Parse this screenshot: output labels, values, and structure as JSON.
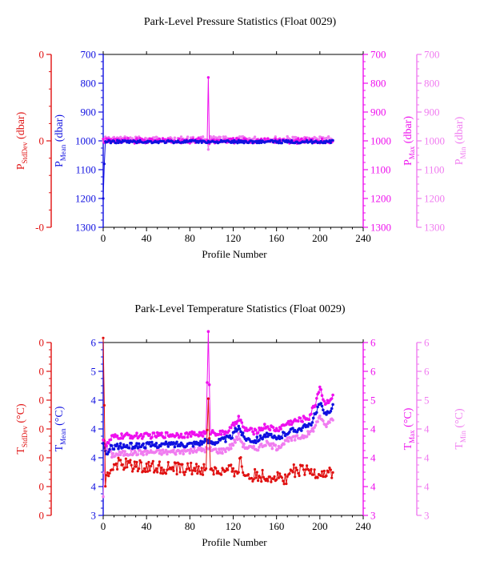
{
  "footer_note": "",
  "colors": {
    "stddev": "#e01010",
    "mean": "#1010e0",
    "max": "#ee10ee",
    "min": "#f07cf0"
  },
  "chart_data": [
    {
      "type": "line",
      "title": "Park-Level Pressure Statistics (Float 0029)",
      "xlabel": "Profile Number",
      "xlim": [
        0,
        240
      ],
      "x_ticks": [
        "0",
        "40",
        "80",
        "120",
        "160",
        "200",
        "240"
      ],
      "y_axes": {
        "stddev": {
          "label_main": "P",
          "label_sub": "StdDev",
          "label_unit": " (dbar)",
          "ticks": [
            "0",
            "0",
            "-0"
          ]
        },
        "mean": {
          "label_main": "P",
          "label_sub": "Mean",
          "label_unit": " (dbar)",
          "ticks": [
            "700",
            "800",
            "900",
            "1000",
            "1100",
            "1200",
            "1300"
          ],
          "ylim": [
            1300,
            700
          ]
        },
        "max": {
          "label_main": "P",
          "label_sub": "Max",
          "label_unit": " (dbar)",
          "ticks": [
            "700",
            "800",
            "900",
            "1000",
            "1100",
            "1200",
            "1300"
          ]
        },
        "min": {
          "label_main": "P",
          "label_sub": "Min",
          "label_unit": " (dbar)",
          "ticks": [
            "700",
            "800",
            "900",
            "1000",
            "1100",
            "1200",
            "1300"
          ]
        }
      },
      "series": [
        {
          "key": "mean",
          "base": 1003,
          "noise": 5,
          "spikes": [
            [
              0,
              1200
            ],
            [
              1,
              1080
            ]
          ]
        },
        {
          "key": "max",
          "base": 1000,
          "noise": 9,
          "spikes": [
            [
              97,
              780
            ],
            [
              98,
              1010
            ]
          ]
        },
        {
          "key": "min",
          "base": 995,
          "noise": 10,
          "spikes": [
            [
              97,
              1030
            ],
            [
              98,
              1000
            ]
          ]
        }
      ]
    },
    {
      "type": "line",
      "title": "Park-Level Temperature Statistics (Float 0029)",
      "xlabel": "Profile Number",
      "xlim": [
        0,
        240
      ],
      "x_ticks": [
        "0",
        "40",
        "80",
        "120",
        "160",
        "200",
        "240"
      ],
      "y_axes": {
        "stddev": {
          "label_main": "T",
          "label_sub": "StdDev",
          "label_unit": " (°C)",
          "ticks": [
            "0",
            "0",
            "0",
            "0",
            "0",
            "0",
            "0"
          ]
        },
        "mean": {
          "label_main": "T",
          "label_sub": "Mean",
          "label_unit": " (°C)",
          "ticks": [
            "6",
            "5",
            "4",
            "4",
            "4",
            "4",
            "3"
          ],
          "ylim": [
            3,
            6
          ]
        },
        "max": {
          "label_main": "T",
          "label_sub": "Max",
          "label_unit": " (°C)",
          "ticks": [
            "6",
            "6",
            "5",
            "4",
            "4",
            "4",
            "3"
          ]
        },
        "min": {
          "label_main": "T",
          "label_sub": "Min",
          "label_unit": " (°C)",
          "ticks": [
            "6",
            "6",
            "5",
            "4",
            "4",
            "4",
            "3"
          ]
        }
      },
      "series": [
        {
          "key": "mean",
          "profile": [
            [
              0,
              4.2
            ],
            [
              3,
              4.05
            ],
            [
              8,
              4.2
            ],
            [
              20,
              4.2
            ],
            [
              40,
              4.22
            ],
            [
              60,
              4.23
            ],
            [
              80,
              4.24
            ],
            [
              95,
              4.28
            ],
            [
              105,
              4.28
            ],
            [
              118,
              4.35
            ],
            [
              125,
              4.55
            ],
            [
              130,
              4.35
            ],
            [
              140,
              4.3
            ],
            [
              150,
              4.4
            ],
            [
              160,
              4.32
            ],
            [
              170,
              4.45
            ],
            [
              180,
              4.5
            ],
            [
              190,
              4.55
            ],
            [
              196,
              4.75
            ],
            [
              200,
              4.95
            ],
            [
              204,
              4.75
            ],
            [
              208,
              4.8
            ],
            [
              212,
              4.9
            ]
          ],
          "noise": 0.05
        },
        {
          "key": "max",
          "profile": [
            [
              0,
              4.35
            ],
            [
              3,
              4.2
            ],
            [
              8,
              4.35
            ],
            [
              20,
              4.38
            ],
            [
              40,
              4.38
            ],
            [
              60,
              4.4
            ],
            [
              80,
              4.4
            ],
            [
              95,
              4.42
            ],
            [
              97,
              6.15
            ],
            [
              99,
              4.45
            ],
            [
              110,
              4.42
            ],
            [
              118,
              4.5
            ],
            [
              125,
              4.7
            ],
            [
              130,
              4.5
            ],
            [
              140,
              4.45
            ],
            [
              150,
              4.55
            ],
            [
              160,
              4.48
            ],
            [
              170,
              4.6
            ],
            [
              180,
              4.65
            ],
            [
              190,
              4.7
            ],
            [
              196,
              4.95
            ],
            [
              200,
              5.25
            ],
            [
              204,
              4.95
            ],
            [
              208,
              5.0
            ],
            [
              212,
              5.05
            ]
          ],
          "noise": 0.05
        },
        {
          "key": "min",
          "profile": [
            [
              0,
              3.35
            ],
            [
              2,
              4.2
            ],
            [
              8,
              4.05
            ],
            [
              20,
              4.08
            ],
            [
              40,
              4.1
            ],
            [
              60,
              4.1
            ],
            [
              80,
              4.12
            ],
            [
              95,
              4.15
            ],
            [
              110,
              4.12
            ],
            [
              118,
              4.2
            ],
            [
              125,
              4.38
            ],
            [
              130,
              4.2
            ],
            [
              140,
              4.15
            ],
            [
              150,
              4.25
            ],
            [
              160,
              4.18
            ],
            [
              170,
              4.3
            ],
            [
              180,
              4.35
            ],
            [
              190,
              4.42
            ],
            [
              196,
              4.55
            ],
            [
              200,
              4.75
            ],
            [
              204,
              4.55
            ],
            [
              208,
              4.6
            ],
            [
              212,
              4.7
            ]
          ],
          "noise": 0.05
        },
        {
          "key": "stddev",
          "profile": [
            [
              0,
              6.0
            ],
            [
              2,
              3.6
            ],
            [
              10,
              3.9
            ],
            [
              40,
              3.85
            ],
            [
              80,
              3.8
            ],
            [
              95,
              3.8
            ],
            [
              97,
              5.0
            ],
            [
              99,
              3.8
            ],
            [
              110,
              3.75
            ],
            [
              125,
              3.8
            ],
            [
              126,
              4.0
            ],
            [
              130,
              3.7
            ],
            [
              150,
              3.68
            ],
            [
              170,
              3.65
            ],
            [
              175,
              3.78
            ],
            [
              190,
              3.75
            ],
            [
              212,
              3.72
            ]
          ],
          "noise": 0.11
        }
      ]
    }
  ]
}
